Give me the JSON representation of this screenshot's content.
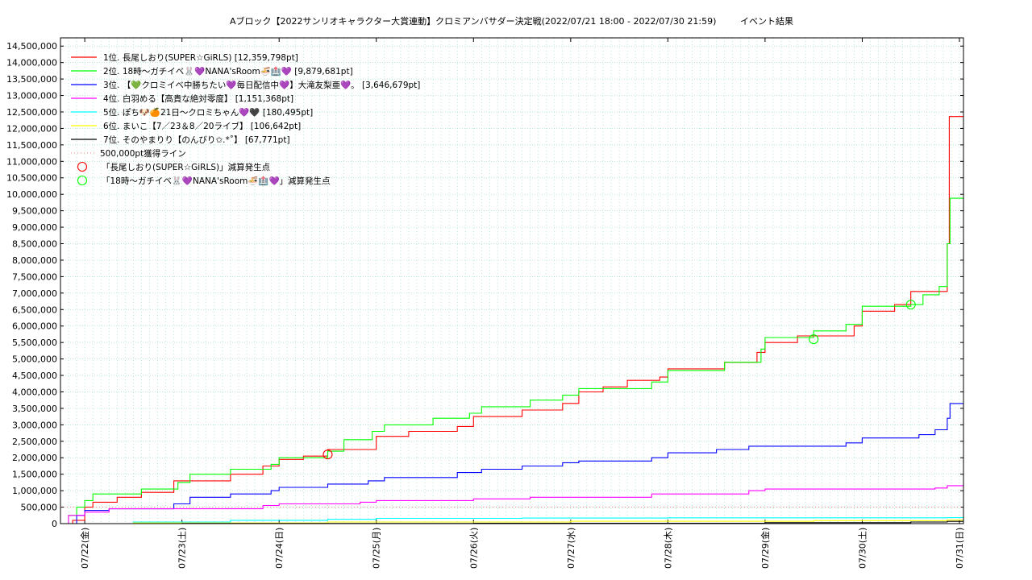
{
  "chart_data": {
    "type": "line",
    "title": "Aブロック【2022サンリオキャラクター大賞連動】クロミアンバサダー決定戦(2022/07/21 18:00 - 2022/07/30 21:59)",
    "subtitle": "イベント結果",
    "xlabel": "",
    "ylabel": "",
    "x_range": [
      "2022-07-21 18:00",
      "2022-07-31 01:00"
    ],
    "ylim": [
      0,
      14750000
    ],
    "yticks": [
      0,
      500000,
      1000000,
      1500000,
      2000000,
      2500000,
      3000000,
      3500000,
      4000000,
      4500000,
      5000000,
      5500000,
      6000000,
      6500000,
      7000000,
      7500000,
      8000000,
      8500000,
      9000000,
      9500000,
      10000000,
      10500000,
      11000000,
      11500000,
      12000000,
      12500000,
      13000000,
      13500000,
      14000000,
      14500000
    ],
    "ytick_labels": [
      "0",
      "500,000",
      "1,000,000",
      "1,500,000",
      "2,000,000",
      "2,500,000",
      "3,000,000",
      "3,500,000",
      "4,000,000",
      "4,500,000",
      "5,000,000",
      "5,500,000",
      "6,000,000",
      "6,500,000",
      "7,000,000",
      "7,500,000",
      "8,000,000",
      "8,500,000",
      "9,000,000",
      "9,500,000",
      "10,000,000",
      "10,500,000",
      "11,000,000",
      "11,500,000",
      "12,000,000",
      "12,500,000",
      "13,000,000",
      "13,500,000",
      "14,000,000",
      "14,500,000"
    ],
    "xticks": [
      "2022-07-22 00:00",
      "2022-07-23 00:00",
      "2022-07-24 00:00",
      "2022-07-25 00:00",
      "2022-07-26 00:00",
      "2022-07-27 00:00",
      "2022-07-28 00:00",
      "2022-07-29 00:00",
      "2022-07-30 00:00",
      "2022-07-31 00:00"
    ],
    "xtick_labels": [
      "07/22(金)",
      "07/23(土)",
      "07/24(日)",
      "07/25(月)",
      "07/26(火)",
      "07/27(水)",
      "07/28(木)",
      "07/29(金)",
      "07/30(土)",
      "07/31(日)"
    ],
    "grid": true,
    "legend_position": "top-left",
    "series": [
      {
        "name": "1位. 長尾しおり(SUPER☆GiRLS) [12,359,798pt]",
        "color": "#ff0000",
        "points": [
          [
            "2022-07-21 18:00",
            0
          ],
          [
            "2022-07-21 21:00",
            100000
          ],
          [
            "2022-07-22 00:00",
            500000
          ],
          [
            "2022-07-22 02:00",
            650000
          ],
          [
            "2022-07-22 08:00",
            800000
          ],
          [
            "2022-07-22 14:00",
            950000
          ],
          [
            "2022-07-22 22:00",
            1300000
          ],
          [
            "2022-07-23 12:00",
            1500000
          ],
          [
            "2022-07-23 20:00",
            1750000
          ],
          [
            "2022-07-24 00:00",
            1950000
          ],
          [
            "2022-07-24 06:00",
            2050000
          ],
          [
            "2022-07-24 12:00",
            2250000
          ],
          [
            "2022-07-25 00:00",
            2650000
          ],
          [
            "2022-07-25 08:00",
            2800000
          ],
          [
            "2022-07-25 20:00",
            2950000
          ],
          [
            "2022-07-26 00:00",
            3250000
          ],
          [
            "2022-07-26 12:00",
            3450000
          ],
          [
            "2022-07-26 22:00",
            3650000
          ],
          [
            "2022-07-27 02:00",
            4000000
          ],
          [
            "2022-07-27 08:00",
            4150000
          ],
          [
            "2022-07-27 14:00",
            4350000
          ],
          [
            "2022-07-27 22:00",
            4450000
          ],
          [
            "2022-07-28 00:00",
            4700000
          ],
          [
            "2022-07-28 14:00",
            4900000
          ],
          [
            "2022-07-28 22:00",
            5200000
          ],
          [
            "2022-07-29 00:00",
            5500000
          ],
          [
            "2022-07-29 08:00",
            5700000
          ],
          [
            "2022-07-29 22:00",
            6000000
          ],
          [
            "2022-07-30 00:00",
            6450000
          ],
          [
            "2022-07-30 08:00",
            6650000
          ],
          [
            "2022-07-30 12:00",
            7050000
          ],
          [
            "2022-07-30 20:00",
            7050000
          ],
          [
            "2022-07-30 21:00",
            8500000
          ],
          [
            "2022-07-30 21:30",
            12359798
          ],
          [
            "2022-07-31 01:00",
            12359798
          ]
        ]
      },
      {
        "name": "2位. 18時〜ガチイベ🐰💜NANA'sRoom🍜🏥💜 [9,879,681pt]",
        "color": "#00ff00",
        "points": [
          [
            "2022-07-21 18:00",
            0
          ],
          [
            "2022-07-21 20:00",
            250000
          ],
          [
            "2022-07-21 22:00",
            500000
          ],
          [
            "2022-07-22 00:00",
            700000
          ],
          [
            "2022-07-22 02:00",
            900000
          ],
          [
            "2022-07-22 14:00",
            1050000
          ],
          [
            "2022-07-22 23:00",
            1250000
          ],
          [
            "2022-07-23 02:00",
            1500000
          ],
          [
            "2022-07-23 12:00",
            1650000
          ],
          [
            "2022-07-23 22:00",
            1800000
          ],
          [
            "2022-07-24 00:00",
            2000000
          ],
          [
            "2022-07-24 12:00",
            2200000
          ],
          [
            "2022-07-24 16:00",
            2550000
          ],
          [
            "2022-07-24 23:00",
            2800000
          ],
          [
            "2022-07-25 02:00",
            3000000
          ],
          [
            "2022-07-25 14:00",
            3200000
          ],
          [
            "2022-07-25 23:00",
            3350000
          ],
          [
            "2022-07-26 02:00",
            3550000
          ],
          [
            "2022-07-26 14:00",
            3750000
          ],
          [
            "2022-07-26 22:00",
            3900000
          ],
          [
            "2022-07-27 02:00",
            4100000
          ],
          [
            "2022-07-27 20:00",
            4300000
          ],
          [
            "2022-07-28 00:00",
            4650000
          ],
          [
            "2022-07-28 14:00",
            4900000
          ],
          [
            "2022-07-28 23:00",
            5300000
          ],
          [
            "2022-07-29 00:00",
            5650000
          ],
          [
            "2022-07-29 12:00",
            5850000
          ],
          [
            "2022-07-29 20:00",
            6050000
          ],
          [
            "2022-07-30 00:00",
            6600000
          ],
          [
            "2022-07-30 12:00",
            6650000
          ],
          [
            "2022-07-30 15:00",
            6950000
          ],
          [
            "2022-07-30 19:00",
            7200000
          ],
          [
            "2022-07-30 21:00",
            8500000
          ],
          [
            "2022-07-30 21:40",
            9879681
          ],
          [
            "2022-07-31 01:00",
            9879681
          ]
        ]
      },
      {
        "name": "3位. 【💚クロミイベ中勝ちたい💜毎日配信中💜】大滝友梨亜💜。 [3,646,679pt]",
        "color": "#0000ff",
        "points": [
          [
            "2022-07-21 18:00",
            0
          ],
          [
            "2022-07-21 22:00",
            250000
          ],
          [
            "2022-07-22 00:00",
            400000
          ],
          [
            "2022-07-22 06:00",
            450000
          ],
          [
            "2022-07-22 22:00",
            600000
          ],
          [
            "2022-07-23 02:00",
            800000
          ],
          [
            "2022-07-23 12:00",
            900000
          ],
          [
            "2022-07-23 22:00",
            1000000
          ],
          [
            "2022-07-24 00:00",
            1100000
          ],
          [
            "2022-07-24 12:00",
            1200000
          ],
          [
            "2022-07-24 22:00",
            1300000
          ],
          [
            "2022-07-25 02:00",
            1400000
          ],
          [
            "2022-07-25 20:00",
            1550000
          ],
          [
            "2022-07-26 02:00",
            1650000
          ],
          [
            "2022-07-26 12:00",
            1750000
          ],
          [
            "2022-07-26 22:00",
            1850000
          ],
          [
            "2022-07-27 02:00",
            1900000
          ],
          [
            "2022-07-27 20:00",
            2000000
          ],
          [
            "2022-07-28 00:00",
            2150000
          ],
          [
            "2022-07-28 12:00",
            2250000
          ],
          [
            "2022-07-28 20:00",
            2350000
          ],
          [
            "2022-07-29 20:00",
            2450000
          ],
          [
            "2022-07-30 00:00",
            2600000
          ],
          [
            "2022-07-30 14:00",
            2700000
          ],
          [
            "2022-07-30 18:00",
            2850000
          ],
          [
            "2022-07-30 21:00",
            3200000
          ],
          [
            "2022-07-30 21:40",
            3646679
          ],
          [
            "2022-07-31 01:00",
            3646679
          ]
        ]
      },
      {
        "name": "4位. 白羽める【高貴な絶対零度】 [1,151,368pt]",
        "color": "#ff00ff",
        "points": [
          [
            "2022-07-21 18:00",
            0
          ],
          [
            "2022-07-21 20:00",
            250000
          ],
          [
            "2022-07-22 00:00",
            350000
          ],
          [
            "2022-07-22 06:00",
            450000
          ],
          [
            "2022-07-23 20:00",
            550000
          ],
          [
            "2022-07-24 00:00",
            600000
          ],
          [
            "2022-07-24 20:00",
            650000
          ],
          [
            "2022-07-25 00:00",
            700000
          ],
          [
            "2022-07-26 00:00",
            750000
          ],
          [
            "2022-07-26 14:00",
            800000
          ],
          [
            "2022-07-27 20:00",
            900000
          ],
          [
            "2022-07-28 20:00",
            1000000
          ],
          [
            "2022-07-29 00:00",
            1050000
          ],
          [
            "2022-07-30 18:00",
            1080000
          ],
          [
            "2022-07-30 21:00",
            1151368
          ],
          [
            "2022-07-31 01:00",
            1151368
          ]
        ]
      },
      {
        "name": "5位. ぽち🐶🍊21日〜クロミちゃん💜🖤 [180,495pt]",
        "color": "#00ffff",
        "points": [
          [
            "2022-07-21 18:00",
            0
          ],
          [
            "2022-07-22 12:00",
            50000
          ],
          [
            "2022-07-23 12:00",
            100000
          ],
          [
            "2022-07-24 12:00",
            130000
          ],
          [
            "2022-07-25 00:00",
            160000
          ],
          [
            "2022-07-26 12:00",
            170000
          ],
          [
            "2022-07-28 00:00",
            175000
          ],
          [
            "2022-07-30 21:00",
            180495
          ],
          [
            "2022-07-31 01:00",
            180495
          ]
        ]
      },
      {
        "name": "6位. まいこ【7／23＆8／20ライブ】 [106,642pt]",
        "color": "#ffff00",
        "points": [
          [
            "2022-07-21 18:00",
            0
          ],
          [
            "2022-07-22 12:00",
            20000
          ],
          [
            "2022-07-24 12:00",
            50000
          ],
          [
            "2022-07-27 00:00",
            70000
          ],
          [
            "2022-07-29 12:00",
            90000
          ],
          [
            "2022-07-30 21:00",
            106642
          ],
          [
            "2022-07-31 01:00",
            106642
          ]
        ]
      },
      {
        "name": "7位. そのやまりり【のんびり✩.*˚】 [67,771pt]",
        "color": "#000000",
        "points": [
          [
            "2022-07-21 18:00",
            0
          ],
          [
            "2022-07-23 00:00",
            5000
          ],
          [
            "2022-07-26 00:00",
            10000
          ],
          [
            "2022-07-29 00:00",
            30000
          ],
          [
            "2022-07-30 12:00",
            50000
          ],
          [
            "2022-07-30 21:00",
            67771
          ],
          [
            "2022-07-31 01:00",
            67771
          ]
        ]
      }
    ],
    "reference_line": {
      "name": "500,000pt獲得ライン",
      "value": 500000,
      "color": "#ff8080"
    },
    "markers": [
      {
        "name": "「長尾しおり(SUPER☆GiRLS)」減算発生点",
        "color": "#ff0000",
        "points": [
          [
            "2022-07-24 12:00",
            2100000
          ]
        ]
      },
      {
        "name": "「18時〜ガチイベ🐰💜NANA'sRoom🍜🏥💜」減算発生点",
        "color": "#00ff00",
        "points": [
          [
            "2022-07-29 12:00",
            5600000
          ],
          [
            "2022-07-30 12:00",
            6650000
          ]
        ]
      }
    ]
  }
}
